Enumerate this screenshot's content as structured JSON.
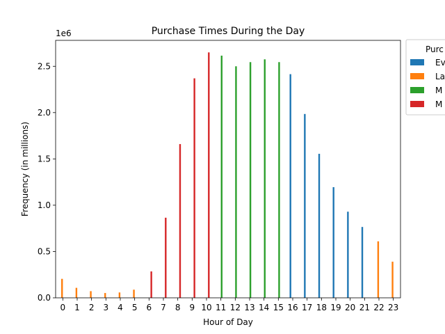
{
  "chart_data": {
    "type": "bar",
    "title": "Purchase Times During the Day",
    "xlabel": "Hour of Day",
    "ylabel": "Frequency (in millions)",
    "offset_label": "1e6",
    "ylim": [
      0,
      2780000
    ],
    "y_ticks": [
      0,
      500000,
      1000000,
      1500000,
      2000000,
      2500000
    ],
    "y_tick_labels": [
      "0.0",
      "0.5",
      "1.0",
      "1.5",
      "2.0",
      "2.5"
    ],
    "grid": false,
    "legend_position": "outside-right",
    "legend_title": "Purc",
    "series": [
      {
        "name": "Ev",
        "color": "#1f77b4"
      },
      {
        "name": "La",
        "color": "#ff7f0e"
      },
      {
        "name": "M",
        "color": "#2ca02c"
      },
      {
        "name": "M",
        "color": "#d62728"
      }
    ],
    "bars": [
      {
        "hour": 0,
        "series": 1,
        "value": 205000
      },
      {
        "hour": 1,
        "series": 1,
        "value": 108000
      },
      {
        "hour": 2,
        "series": 1,
        "value": 72000
      },
      {
        "hour": 3,
        "series": 1,
        "value": 52000
      },
      {
        "hour": 4,
        "series": 1,
        "value": 58000
      },
      {
        "hour": 5,
        "series": 1,
        "value": 88000
      },
      {
        "hour": 6,
        "series": 3,
        "value": 285000
      },
      {
        "hour": 7,
        "series": 3,
        "value": 865000
      },
      {
        "hour": 8,
        "series": 3,
        "value": 1660000
      },
      {
        "hour": 9,
        "series": 3,
        "value": 2370000
      },
      {
        "hour": 10,
        "series": 3,
        "value": 2650000
      },
      {
        "hour": 11,
        "series": 2,
        "value": 2615000
      },
      {
        "hour": 12,
        "series": 2,
        "value": 2500000
      },
      {
        "hour": 13,
        "series": 2,
        "value": 2545000
      },
      {
        "hour": 14,
        "series": 2,
        "value": 2575000
      },
      {
        "hour": 15,
        "series": 2,
        "value": 2545000
      },
      {
        "hour": 16,
        "series": 0,
        "value": 2415000
      },
      {
        "hour": 17,
        "series": 0,
        "value": 1985000
      },
      {
        "hour": 18,
        "series": 0,
        "value": 1555000
      },
      {
        "hour": 19,
        "series": 0,
        "value": 1195000
      },
      {
        "hour": 20,
        "series": 0,
        "value": 930000
      },
      {
        "hour": 21,
        "series": 0,
        "value": 765000
      },
      {
        "hour": 22,
        "series": 1,
        "value": 610000
      },
      {
        "hour": 23,
        "series": 1,
        "value": 390000
      }
    ]
  }
}
